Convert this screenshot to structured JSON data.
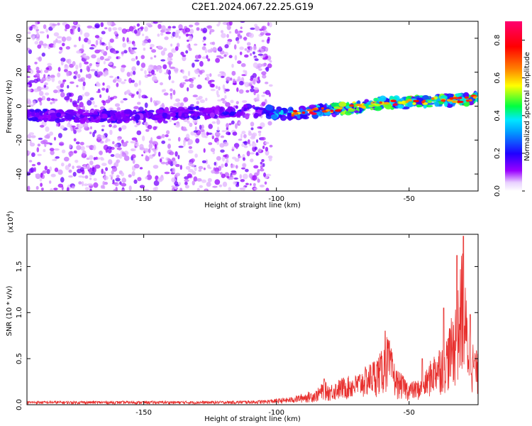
{
  "title": "C2E1.2024.067.22.25.G19",
  "chart_data": [
    {
      "type": "heatmap",
      "xlabel": "Height of straight line (km)",
      "ylabel": "Frequency (Hz)",
      "xlim": [
        -194,
        -24
      ],
      "ylim": [
        -50,
        50
      ],
      "xticks": [
        -150,
        -100,
        -50
      ],
      "xtick_labels": [
        "-150",
        "-100",
        "-50"
      ],
      "yticks": [
        -40,
        -20,
        0,
        20,
        40
      ],
      "ytick_labels": [
        "-40",
        "-20",
        "0",
        "20",
        "40"
      ],
      "signal_ridge": {
        "height_km": [
          -194,
          -170,
          -150,
          -130,
          -110,
          -100,
          -90,
          -80,
          -70,
          -60,
          -50,
          -40,
          -30,
          -25
        ],
        "frequency_hz": [
          -5,
          -6,
          -6,
          -4,
          -3,
          -4,
          -4,
          -2,
          -1,
          2,
          2,
          3,
          4,
          5
        ]
      },
      "noise_extent_km": [
        -194,
        -102
      ],
      "colorbar": {
        "label": "Normalized spectral amplitude",
        "range": [
          0.0,
          0.9
        ],
        "ticks": [
          0.0,
          0.2,
          0.4,
          0.6,
          0.8
        ],
        "tick_labels": [
          "0.0",
          "0.2",
          "0.4",
          "0.6",
          "0.8"
        ],
        "colors": [
          "#ffffff",
          "#9a00ff",
          "#2000ff",
          "#00e8ff",
          "#00ff40",
          "#ffff00",
          "#ff8000",
          "#ff0000",
          "#ff0070"
        ]
      }
    },
    {
      "type": "line",
      "xlabel": "Height of straight line (km)",
      "ylabel": "SNR (10 * v/v)",
      "y_multiplier": "(x10",
      "y_multiplier_exp": "4",
      "y_multiplier_close": ")",
      "xlim": [
        -194,
        -24
      ],
      "ylim": [
        0,
        1.85
      ],
      "xticks": [
        -150,
        -100,
        -50
      ],
      "xtick_labels": [
        "-150",
        "-100",
        "-50"
      ],
      "yticks": [
        0.0,
        0.5,
        1.0,
        1.5
      ],
      "ytick_labels": [
        "0.0",
        "0.5",
        "1.0",
        "1.5"
      ],
      "line_color": "#e8302e",
      "envelope": {
        "x": [
          -194,
          -120,
          -105,
          -95,
          -90,
          -85,
          -82,
          -80,
          -75,
          -70,
          -65,
          -60,
          -58,
          -55,
          -50,
          -45,
          -42,
          -40,
          -36,
          -33,
          -31,
          -30,
          -28,
          -26,
          -24
        ],
        "y": [
          0.04,
          0.04,
          0.05,
          0.08,
          0.12,
          0.16,
          0.26,
          0.22,
          0.3,
          0.33,
          0.45,
          0.6,
          0.78,
          0.4,
          0.25,
          0.28,
          0.48,
          0.6,
          0.75,
          1.05,
          1.35,
          1.8,
          1.0,
          0.7,
          0.55
        ]
      },
      "peaks": [
        {
          "x": -82,
          "y": 0.28
        },
        {
          "x": -59,
          "y": 0.8
        },
        {
          "x": -45,
          "y": 0.5
        },
        {
          "x": -37,
          "y": 1.05
        },
        {
          "x": -32,
          "y": 1.62
        },
        {
          "x": -29.5,
          "y": 1.83
        },
        {
          "x": -27,
          "y": 0.98
        }
      ]
    }
  ]
}
